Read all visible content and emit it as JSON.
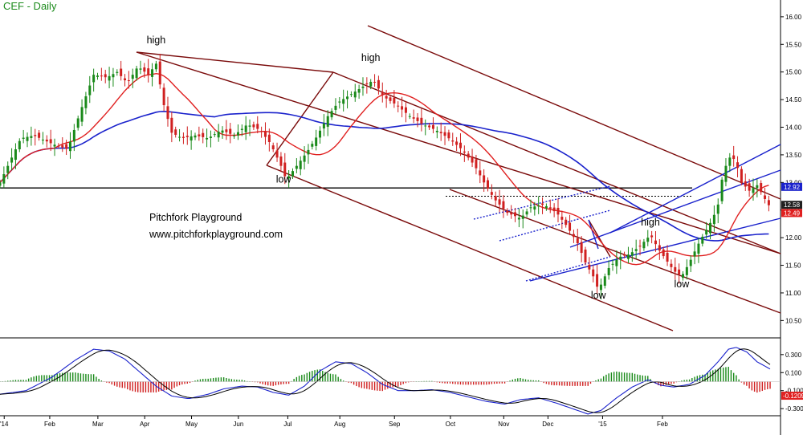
{
  "title": "CEF - Daily",
  "watermark": {
    "line1": "Pitchfork Playground",
    "line2": "www.pitchforkplayground.com"
  },
  "colors": {
    "title": "#1a8a1a",
    "ma_long": "#1a22cc",
    "ma_short": "#e02020",
    "pitchfork": "#7a0a0a",
    "pitchfork_blue": "#1a22cc",
    "candle_up": "#1a8a1a",
    "candle_down": "#d02020",
    "hist_pos": "#1a8a1a",
    "hist_neg": "#d02020"
  },
  "chart_data": {
    "type": "candlestick",
    "price_axis": {
      "ticks": [
        "16.00",
        "15.50",
        "15.00",
        "14.50",
        "14.00",
        "13.50",
        "13.00",
        "12.50",
        "12.00",
        "11.50",
        "11.00",
        "10.50"
      ],
      "range": [
        10.2,
        16.1
      ]
    },
    "x_axis": {
      "labels": [
        "'14",
        "Feb",
        "Mar",
        "Apr",
        "May",
        "Jun",
        "Jul",
        "Aug",
        "Sep",
        "Oct",
        "Nov",
        "Dec",
        "'15",
        "Feb"
      ]
    },
    "price_tags": [
      {
        "label": "12.92",
        "value": 12.92,
        "color": "#1a22cc"
      },
      {
        "label": "12.58",
        "value": 12.58,
        "color": "#202020"
      },
      {
        "label": "12.49",
        "value": 12.49,
        "color": "#e02020"
      }
    ],
    "horizontal_line": 12.9,
    "dotted_line": 12.75,
    "annotations": [
      {
        "text": "high",
        "x_day": 120,
        "price": 15.52
      },
      {
        "text": "low",
        "x_day": 218,
        "price": 13.0
      },
      {
        "text": "high",
        "x_day": 285,
        "price": 15.2
      },
      {
        "text": "low",
        "x_day": 460,
        "price": 10.9
      },
      {
        "text": "high",
        "x_day": 500,
        "price": 12.22
      },
      {
        "text": "low",
        "x_day": 524,
        "price": 11.1
      }
    ],
    "price_anchors": [
      [
        0,
        13.0
      ],
      [
        8,
        13.4
      ],
      [
        16,
        13.8
      ],
      [
        26,
        13.85
      ],
      [
        40,
        13.7
      ],
      [
        52,
        13.6
      ],
      [
        62,
        14.3
      ],
      [
        72,
        14.95
      ],
      [
        82,
        14.9
      ],
      [
        90,
        15.0
      ],
      [
        98,
        14.8
      ],
      [
        106,
        15.1
      ],
      [
        114,
        14.95
      ],
      [
        120,
        15.15
      ],
      [
        126,
        14.4
      ],
      [
        132,
        13.9
      ],
      [
        140,
        13.8
      ],
      [
        150,
        13.85
      ],
      [
        160,
        13.8
      ],
      [
        170,
        13.95
      ],
      [
        180,
        13.85
      ],
      [
        190,
        14.05
      ],
      [
        200,
        13.95
      ],
      [
        208,
        13.7
      ],
      [
        216,
        13.3
      ],
      [
        220,
        13.05
      ],
      [
        228,
        13.3
      ],
      [
        236,
        13.55
      ],
      [
        244,
        13.85
      ],
      [
        252,
        14.2
      ],
      [
        260,
        14.45
      ],
      [
        270,
        14.6
      ],
      [
        280,
        14.75
      ],
      [
        287,
        14.85
      ],
      [
        295,
        14.55
      ],
      [
        305,
        14.4
      ],
      [
        315,
        14.2
      ],
      [
        325,
        14.05
      ],
      [
        335,
        13.95
      ],
      [
        345,
        13.8
      ],
      [
        355,
        13.6
      ],
      [
        365,
        13.3
      ],
      [
        372,
        13.0
      ],
      [
        380,
        12.7
      ],
      [
        390,
        12.45
      ],
      [
        400,
        12.35
      ],
      [
        408,
        12.55
      ],
      [
        418,
        12.6
      ],
      [
        428,
        12.45
      ],
      [
        436,
        12.2
      ],
      [
        444,
        11.9
      ],
      [
        450,
        11.55
      ],
      [
        456,
        11.3
      ],
      [
        460,
        11.05
      ],
      [
        468,
        11.45
      ],
      [
        476,
        11.65
      ],
      [
        484,
        11.7
      ],
      [
        492,
        11.85
      ],
      [
        500,
        12.05
      ],
      [
        506,
        11.8
      ],
      [
        512,
        11.6
      ],
      [
        518,
        11.4
      ],
      [
        524,
        11.3
      ],
      [
        530,
        11.55
      ],
      [
        536,
        11.85
      ],
      [
        542,
        12.1
      ],
      [
        548,
        12.35
      ],
      [
        552,
        12.6
      ],
      [
        556,
        13.2
      ],
      [
        562,
        13.5
      ],
      [
        566,
        13.35
      ],
      [
        570,
        13.0
      ],
      [
        576,
        12.85
      ],
      [
        582,
        12.95
      ],
      [
        588,
        12.7
      ],
      [
        592,
        12.55
      ]
    ],
    "macd_axis": {
      "ticks": [
        "0.300",
        "0.100",
        "-0.100",
        "-0.300"
      ],
      "range": [
        -0.37,
        0.45
      ],
      "tag": {
        "label": "-0.1209",
        "value": -0.1209
      }
    },
    "macd_anchors": [
      [
        0,
        -0.14
      ],
      [
        20,
        -0.1
      ],
      [
        40,
        0.05
      ],
      [
        58,
        0.24
      ],
      [
        72,
        0.36
      ],
      [
        84,
        0.34
      ],
      [
        96,
        0.25
      ],
      [
        108,
        0.1
      ],
      [
        120,
        -0.05
      ],
      [
        132,
        -0.16
      ],
      [
        145,
        -0.19
      ],
      [
        160,
        -0.14
      ],
      [
        172,
        -0.08
      ],
      [
        186,
        -0.05
      ],
      [
        198,
        -0.06
      ],
      [
        210,
        -0.12
      ],
      [
        222,
        -0.15
      ],
      [
        234,
        -0.05
      ],
      [
        246,
        0.12
      ],
      [
        258,
        0.22
      ],
      [
        270,
        0.2
      ],
      [
        282,
        0.1
      ],
      [
        294,
        -0.03
      ],
      [
        306,
        -0.1
      ],
      [
        318,
        -0.1
      ],
      [
        332,
        -0.09
      ],
      [
        346,
        -0.12
      ],
      [
        360,
        -0.17
      ],
      [
        374,
        -0.22
      ],
      [
        388,
        -0.25
      ],
      [
        400,
        -0.2
      ],
      [
        414,
        -0.18
      ],
      [
        428,
        -0.24
      ],
      [
        440,
        -0.3
      ],
      [
        452,
        -0.36
      ],
      [
        462,
        -0.32
      ],
      [
        474,
        -0.18
      ],
      [
        486,
        -0.06
      ],
      [
        498,
        0.02
      ],
      [
        508,
        -0.04
      ],
      [
        518,
        -0.06
      ],
      [
        530,
        -0.03
      ],
      [
        542,
        0.07
      ],
      [
        552,
        0.22
      ],
      [
        560,
        0.36
      ],
      [
        566,
        0.38
      ],
      [
        574,
        0.33
      ],
      [
        582,
        0.22
      ],
      [
        592,
        0.14
      ]
    ]
  }
}
